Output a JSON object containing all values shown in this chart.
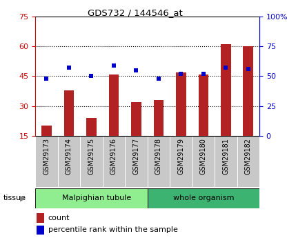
{
  "title": "GDS732 / 144546_at",
  "samples": [
    "GSM29173",
    "GSM29174",
    "GSM29175",
    "GSM29176",
    "GSM29177",
    "GSM29178",
    "GSM29179",
    "GSM29180",
    "GSM29181",
    "GSM29182"
  ],
  "counts": [
    20,
    38,
    24,
    46,
    32,
    33,
    47,
    46,
    61,
    60
  ],
  "percentiles": [
    48,
    57,
    50,
    59,
    55,
    48,
    52,
    52,
    57,
    56
  ],
  "bar_color": "#B22222",
  "dot_color": "#0000CD",
  "left_ylim": [
    15,
    75
  ],
  "left_yticks": [
    15,
    30,
    45,
    60,
    75
  ],
  "right_ylim": [
    0,
    100
  ],
  "right_yticks": [
    0,
    25,
    50,
    75,
    100
  ],
  "right_yticklabels": [
    "0",
    "25",
    "50",
    "75",
    "100%"
  ],
  "group1_label": "Malpighian tubule",
  "group2_label": "whole organism",
  "group1_count": 5,
  "group2_count": 5,
  "group1_color": "#90EE90",
  "group2_color": "#3CB371",
  "tissue_label": "tissue",
  "legend_count_label": "count",
  "legend_percentile_label": "percentile rank within the sample",
  "bg_color": "#FFFFFF",
  "plot_bg": "#FFFFFF",
  "xticklabel_bg": "#C8C8C8",
  "dotted_line_color": "#000000",
  "left_tick_color": "#CC0000",
  "right_tick_color": "#0000CC",
  "grid_lines": [
    30,
    45,
    60
  ],
  "bar_width": 0.45
}
